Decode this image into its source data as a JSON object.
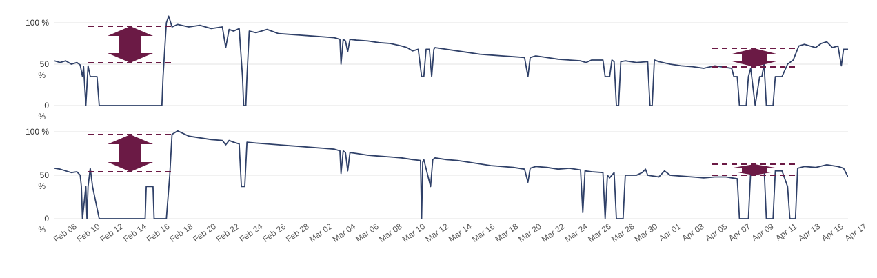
{
  "chart_data": [
    {
      "type": "line",
      "y_tick_labels": [
        "100 %",
        "50 %",
        "0 %"
      ],
      "y_ticks": [
        100,
        50,
        0
      ],
      "ylim": [
        0,
        100
      ],
      "x_tick_labels": [
        "Feb 08",
        "Feb 10",
        "Feb 12",
        "Feb 14",
        "Feb 16",
        "Feb 18",
        "Feb 20",
        "Feb 22",
        "Feb 24",
        "Feb 26",
        "Feb 28",
        "Mar 02",
        "Mar 04",
        "Mar 06",
        "Mar 08",
        "Mar 10",
        "Mar 12",
        "Mar 14",
        "Mar 16",
        "Mar 18",
        "Mar 20",
        "Mar 22",
        "Mar 24",
        "Mar 26",
        "Mar 28",
        "Mar 30",
        "Apr 01",
        "Apr 03",
        "Apr 05",
        "Apr 07",
        "Apr 09",
        "Apr 11",
        "Apr 13",
        "Apr 15",
        "Apr 17"
      ],
      "x_start_day": 0,
      "x_end_day": 70.9,
      "grid": "horizontal",
      "series_color": "#2f4068",
      "annotation_color": "#6b1a45",
      "values": [
        [
          0,
          54
        ],
        [
          0.5,
          52
        ],
        [
          1,
          54
        ],
        [
          1.5,
          50
        ],
        [
          2,
          52
        ],
        [
          2.3,
          49
        ],
        [
          2.5,
          35
        ],
        [
          2.6,
          47
        ],
        [
          2.8,
          0
        ],
        [
          3,
          48
        ],
        [
          3.2,
          35
        ],
        [
          3.8,
          35
        ],
        [
          4,
          0
        ],
        [
          5,
          0
        ],
        [
          7,
          0
        ],
        [
          9,
          0
        ],
        [
          9.6,
          0
        ],
        [
          9.7,
          35
        ],
        [
          10,
          100
        ],
        [
          10.2,
          108
        ],
        [
          10.5,
          95
        ],
        [
          11,
          98
        ],
        [
          12,
          95
        ],
        [
          13,
          97
        ],
        [
          14,
          93
        ],
        [
          15,
          95
        ],
        [
          15.3,
          70
        ],
        [
          15.6,
          92
        ],
        [
          16,
          90
        ],
        [
          16.5,
          93
        ],
        [
          16.8,
          35
        ],
        [
          16.9,
          0
        ],
        [
          17.1,
          0
        ],
        [
          17.2,
          35
        ],
        [
          17.4,
          90
        ],
        [
          18,
          88
        ],
        [
          19,
          92
        ],
        [
          20,
          87
        ],
        [
          21,
          86
        ],
        [
          22,
          85
        ],
        [
          23,
          84
        ],
        [
          24,
          83
        ],
        [
          25,
          82
        ],
        [
          25.5,
          80
        ],
        [
          25.6,
          50
        ],
        [
          25.8,
          80
        ],
        [
          26,
          78
        ],
        [
          26.2,
          65
        ],
        [
          26.4,
          80
        ],
        [
          27,
          79
        ],
        [
          28,
          78
        ],
        [
          29,
          76
        ],
        [
          30,
          75
        ],
        [
          31,
          72
        ],
        [
          31.5,
          70
        ],
        [
          32,
          66
        ],
        [
          32.5,
          68
        ],
        [
          32.8,
          35
        ],
        [
          33,
          35
        ],
        [
          33.2,
          68
        ],
        [
          33.5,
          68
        ],
        [
          33.7,
          35
        ],
        [
          33.9,
          68
        ],
        [
          34,
          70
        ],
        [
          35,
          68
        ],
        [
          36,
          66
        ],
        [
          37,
          64
        ],
        [
          38,
          62
        ],
        [
          39,
          61
        ],
        [
          40,
          60
        ],
        [
          41,
          59
        ],
        [
          42,
          58
        ],
        [
          42.3,
          35
        ],
        [
          42.5,
          58
        ],
        [
          43,
          60
        ],
        [
          44,
          58
        ],
        [
          45,
          56
        ],
        [
          46,
          55
        ],
        [
          47,
          54
        ],
        [
          47.5,
          52
        ],
        [
          48,
          55
        ],
        [
          49,
          55
        ],
        [
          49.2,
          35
        ],
        [
          49.6,
          35
        ],
        [
          49.8,
          55
        ],
        [
          50,
          53
        ],
        [
          50.2,
          0
        ],
        [
          50.4,
          0
        ],
        [
          50.6,
          53
        ],
        [
          51,
          54
        ],
        [
          52,
          52
        ],
        [
          53,
          53
        ],
        [
          53.2,
          0
        ],
        [
          53.4,
          0
        ],
        [
          53.6,
          55
        ],
        [
          54,
          53
        ],
        [
          55,
          50
        ],
        [
          56,
          48
        ],
        [
          57,
          47
        ],
        [
          58,
          45
        ],
        [
          59,
          48
        ],
        [
          60,
          46
        ],
        [
          60.5,
          45
        ],
        [
          60.7,
          35
        ],
        [
          61,
          35
        ],
        [
          61.2,
          0
        ],
        [
          61.8,
          0
        ],
        [
          62,
          35
        ],
        [
          62.2,
          45
        ],
        [
          62.6,
          0
        ],
        [
          63,
          35
        ],
        [
          63.2,
          35
        ],
        [
          63.4,
          50
        ],
        [
          63.6,
          0
        ],
        [
          64.2,
          0
        ],
        [
          64.4,
          35
        ],
        [
          65,
          35
        ],
        [
          65.5,
          50
        ],
        [
          66,
          55
        ],
        [
          66.5,
          72
        ],
        [
          67,
          74
        ],
        [
          68,
          70
        ],
        [
          68.5,
          75
        ],
        [
          69,
          77
        ],
        [
          69.5,
          70
        ],
        [
          70,
          72
        ],
        [
          70.3,
          48
        ],
        [
          70.5,
          68
        ],
        [
          70.9,
          68
        ]
      ]
    },
    {
      "type": "line",
      "y_tick_labels": [
        "100 %",
        "50 %",
        "0 %"
      ],
      "y_ticks": [
        100,
        50,
        0
      ],
      "ylim": [
        0,
        100
      ],
      "x_tick_labels": [
        "Feb 08",
        "Feb 10",
        "Feb 12",
        "Feb 14",
        "Feb 16",
        "Feb 18",
        "Feb 20",
        "Feb 22",
        "Feb 24",
        "Feb 26",
        "Feb 28",
        "Mar 02",
        "Mar 04",
        "Mar 06",
        "Mar 08",
        "Mar 10",
        "Mar 12",
        "Mar 14",
        "Mar 16",
        "Mar 18",
        "Mar 20",
        "Mar 22",
        "Mar 24",
        "Mar 26",
        "Mar 28",
        "Mar 30",
        "Apr 01",
        "Apr 03",
        "Apr 05",
        "Apr 07",
        "Apr 09",
        "Apr 11",
        "Apr 13",
        "Apr 15",
        "Apr 17"
      ],
      "x_start_day": 0,
      "x_end_day": 70.9,
      "grid": "horizontal",
      "series_color": "#2f4068",
      "annotation_color": "#6b1a45",
      "values": [
        [
          0,
          58
        ],
        [
          0.5,
          57
        ],
        [
          1,
          55
        ],
        [
          1.5,
          53
        ],
        [
          2,
          54
        ],
        [
          2.3,
          50
        ],
        [
          2.4,
          37
        ],
        [
          2.5,
          0
        ],
        [
          2.8,
          37
        ],
        [
          2.9,
          0
        ],
        [
          3,
          37
        ],
        [
          3.2,
          58
        ],
        [
          3.4,
          37
        ],
        [
          4,
          0
        ],
        [
          5,
          0
        ],
        [
          7,
          0
        ],
        [
          8.1,
          0
        ],
        [
          8.2,
          37
        ],
        [
          8.8,
          37
        ],
        [
          8.9,
          0
        ],
        [
          10,
          0
        ],
        [
          10.3,
          50
        ],
        [
          10.5,
          97
        ],
        [
          11,
          101
        ],
        [
          12,
          95
        ],
        [
          13,
          93
        ],
        [
          14,
          91
        ],
        [
          15,
          90
        ],
        [
          15.3,
          85
        ],
        [
          15.6,
          90
        ],
        [
          16,
          88
        ],
        [
          16.5,
          86
        ],
        [
          16.7,
          37
        ],
        [
          17,
          37
        ],
        [
          17.2,
          88
        ],
        [
          18,
          87
        ],
        [
          19,
          86
        ],
        [
          20,
          85
        ],
        [
          21,
          84
        ],
        [
          22,
          83
        ],
        [
          23,
          82
        ],
        [
          24,
          81
        ],
        [
          25,
          80
        ],
        [
          25.5,
          78
        ],
        [
          25.6,
          52
        ],
        [
          25.8,
          78
        ],
        [
          26,
          76
        ],
        [
          26.2,
          55
        ],
        [
          26.4,
          76
        ],
        [
          27,
          75
        ],
        [
          28,
          73
        ],
        [
          29,
          72
        ],
        [
          30,
          71
        ],
        [
          31,
          70
        ],
        [
          32,
          68
        ],
        [
          32.7,
          67
        ],
        [
          32.8,
          0
        ],
        [
          32.9,
          65
        ],
        [
          33,
          68
        ],
        [
          33.6,
          37
        ],
        [
          33.8,
          68
        ],
        [
          34,
          70
        ],
        [
          35,
          68
        ],
        [
          36,
          67
        ],
        [
          37,
          65
        ],
        [
          38,
          63
        ],
        [
          39,
          61
        ],
        [
          40,
          60
        ],
        [
          41,
          59
        ],
        [
          42,
          57
        ],
        [
          42.3,
          42
        ],
        [
          42.5,
          58
        ],
        [
          43,
          60
        ],
        [
          44,
          59
        ],
        [
          45,
          57
        ],
        [
          46,
          58
        ],
        [
          47,
          56
        ],
        [
          47.2,
          7
        ],
        [
          47.4,
          55
        ],
        [
          48,
          54
        ],
        [
          49,
          53
        ],
        [
          49.2,
          0
        ],
        [
          49.4,
          50
        ],
        [
          49.6,
          47
        ],
        [
          50,
          53
        ],
        [
          50.2,
          0
        ],
        [
          50.8,
          0
        ],
        [
          51,
          50
        ],
        [
          52,
          50
        ],
        [
          52.5,
          53
        ],
        [
          52.8,
          57
        ],
        [
          53,
          50
        ],
        [
          54,
          48
        ],
        [
          54.5,
          55
        ],
        [
          55,
          50
        ],
        [
          56,
          49
        ],
        [
          57,
          48
        ],
        [
          58,
          47
        ],
        [
          59,
          48
        ],
        [
          60,
          48
        ],
        [
          60.5,
          47
        ],
        [
          61,
          46
        ],
        [
          61.2,
          0
        ],
        [
          62,
          0
        ],
        [
          62.2,
          55
        ],
        [
          63,
          57
        ],
        [
          63.4,
          59
        ],
        [
          63.6,
          0
        ],
        [
          64.2,
          0
        ],
        [
          64.4,
          55
        ],
        [
          65,
          55
        ],
        [
          65.5,
          37
        ],
        [
          65.7,
          0
        ],
        [
          66.2,
          0
        ],
        [
          66.4,
          58
        ],
        [
          67,
          60
        ],
        [
          68,
          59
        ],
        [
          69,
          62
        ],
        [
          70,
          60
        ],
        [
          70.5,
          58
        ],
        [
          70.9,
          48
        ]
      ]
    }
  ]
}
